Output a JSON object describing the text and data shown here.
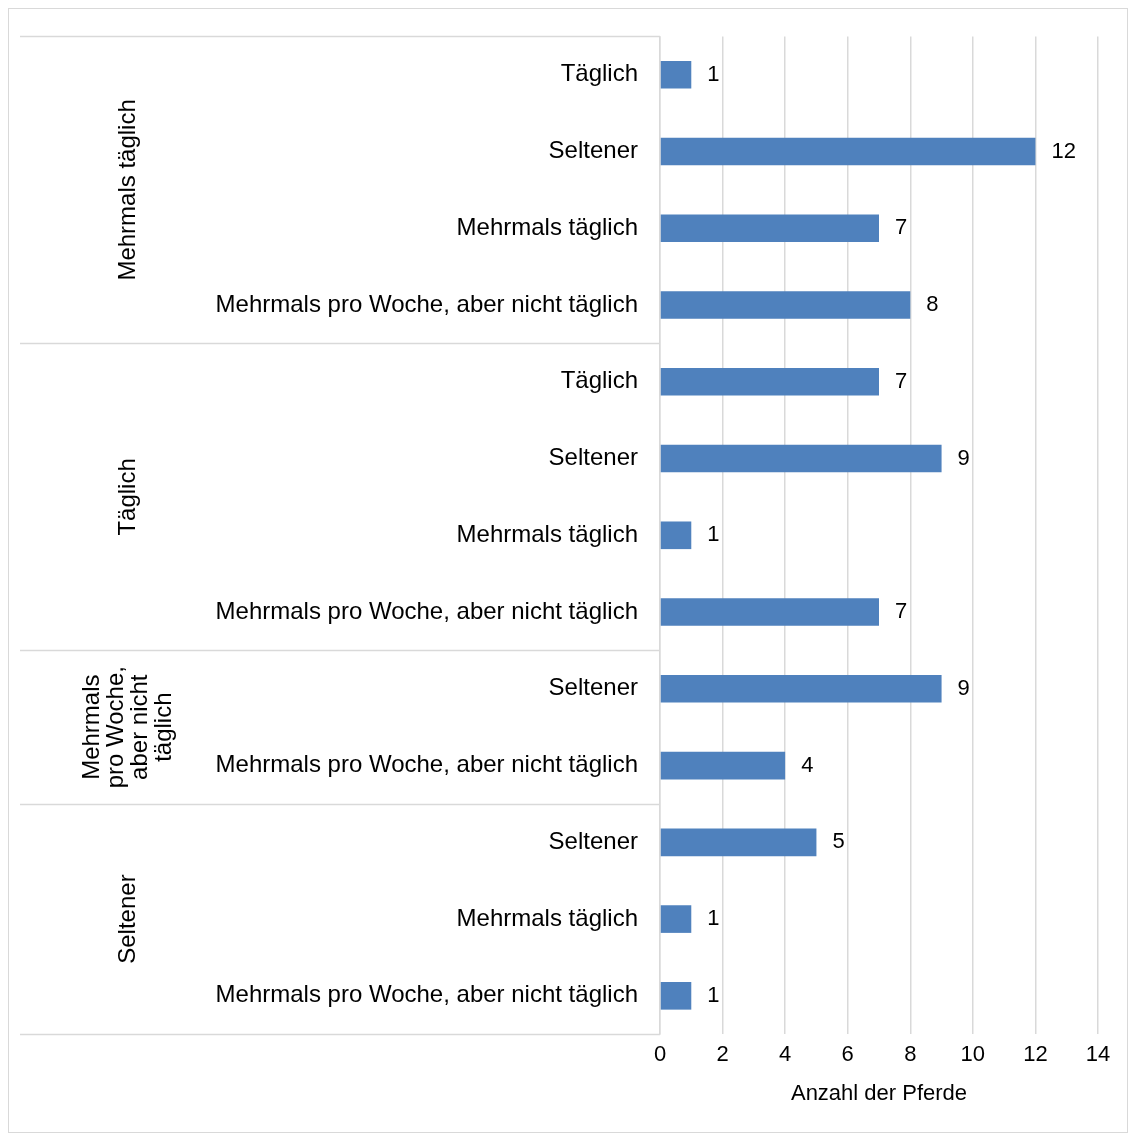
{
  "chart_data": {
    "type": "bar",
    "orientation": "horizontal",
    "xlabel": "Anzahl der Pferde",
    "categories": [
      "Täglich",
      "Seltener",
      "Mehrmals täglich",
      "Mehrmals pro Woche, aber nicht täglich",
      "Täglich",
      "Seltener",
      "Mehrmals täglich",
      "Mehrmals pro Woche, aber nicht täglich",
      "Seltener",
      "Mehrmals pro Woche, aber nicht täglich",
      "Seltener",
      "Mehrmals täglich",
      "Mehrmals pro Woche, aber nicht täglich"
    ],
    "values": [
      1,
      12,
      7,
      8,
      7,
      9,
      1,
      7,
      9,
      4,
      5,
      1,
      1
    ],
    "color": "#4f81bd",
    "xlim": [
      0,
      14
    ],
    "xticks": [
      0,
      2,
      4,
      6,
      8,
      10,
      12,
      14
    ],
    "grid": "x",
    "data_labels": true,
    "annotations": [
      "Mehrmals täglich",
      "Täglich",
      "Mehrmals pro Woche, aber nicht täglich",
      "Seltener"
    ]
  }
}
